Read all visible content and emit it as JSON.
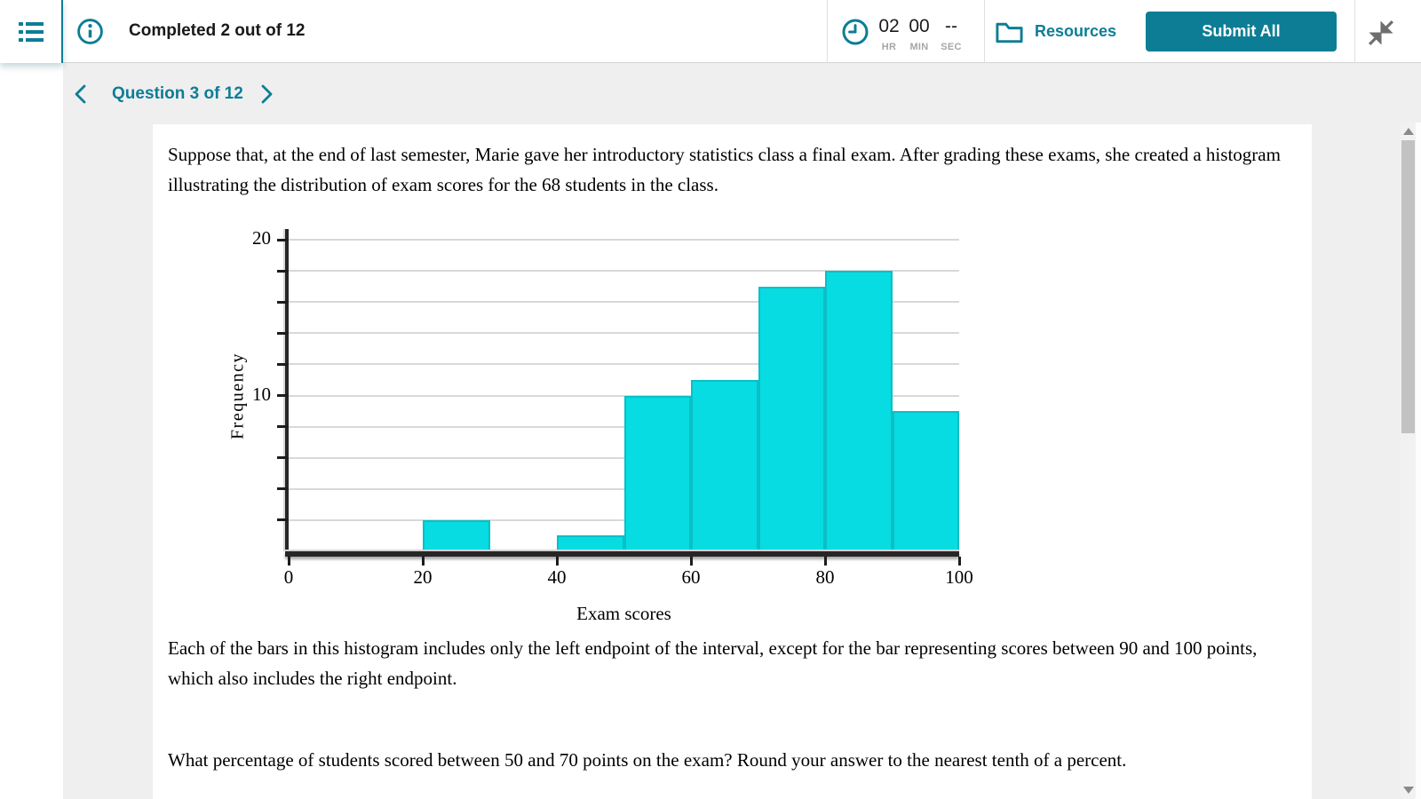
{
  "header": {
    "completed_label": "Completed 2 out of 12",
    "timer": {
      "hours": "02",
      "minutes": "00",
      "seconds": "--",
      "hr_label": "HR",
      "min_label": "MIN",
      "sec_label": "SEC"
    },
    "resources_label": "Resources",
    "submit_all_label": "Submit All"
  },
  "question_nav": {
    "label": "Question 3 of 12"
  },
  "question": {
    "intro_text": "Suppose that, at the end of last semester, Marie gave her introductory statistics class a final exam. After grading these exams, she created a histogram illustrating the distribution of exam scores for the 68 students in the class.",
    "endpoint_note": "Each of the bars in this histogram includes only the left endpoint of the interval, except for the bar representing scores between 90 and 100 points, which also includes the right endpoint.",
    "prompt": "What percentage of students scored between 50 and 70 points on the exam? Round your answer to the nearest tenth of a percent."
  },
  "chart_data": {
    "type": "bar",
    "title": "",
    "xlabel": "Exam scores",
    "ylabel": "Frequency",
    "xlim": [
      0,
      100
    ],
    "ylim": [
      0,
      20
    ],
    "x_ticks": [
      0,
      20,
      40,
      60,
      80,
      100
    ],
    "y_tick_step": 2,
    "y_labeled_ticks": [
      10,
      20
    ],
    "grid": "horizontal",
    "legend": "none",
    "total_students": 68,
    "bins": [
      {
        "range": [
          0,
          20
        ],
        "frequency": 0
      },
      {
        "range": [
          20,
          30
        ],
        "frequency": 2
      },
      {
        "range": [
          30,
          40
        ],
        "frequency": 0
      },
      {
        "range": [
          40,
          50
        ],
        "frequency": 1
      },
      {
        "range": [
          50,
          60
        ],
        "frequency": 10
      },
      {
        "range": [
          60,
          70
        ],
        "frequency": 11
      },
      {
        "range": [
          70,
          80
        ],
        "frequency": 17
      },
      {
        "range": [
          80,
          90
        ],
        "frequency": 18
      },
      {
        "range": [
          90,
          100
        ],
        "frequency": 9
      }
    ]
  },
  "icons": {
    "menu": "list-icon",
    "info": "info-circle-icon",
    "timer": "clock-icon",
    "resources": "folder-icon",
    "collapse": "collapse-arrows-icon",
    "prev": "chevron-left-icon",
    "next": "chevron-right-icon",
    "scroll_up": "triangle-up",
    "scroll_down": "triangle-down"
  },
  "colors": {
    "accent": "#0d7d95",
    "bar_fill": "#06dce2",
    "bar_border": "#0abfc6",
    "gridline": "#d8d8d8",
    "axis": "#262626",
    "muted_label": "#a6a6a6",
    "page_bg": "#efefef"
  }
}
